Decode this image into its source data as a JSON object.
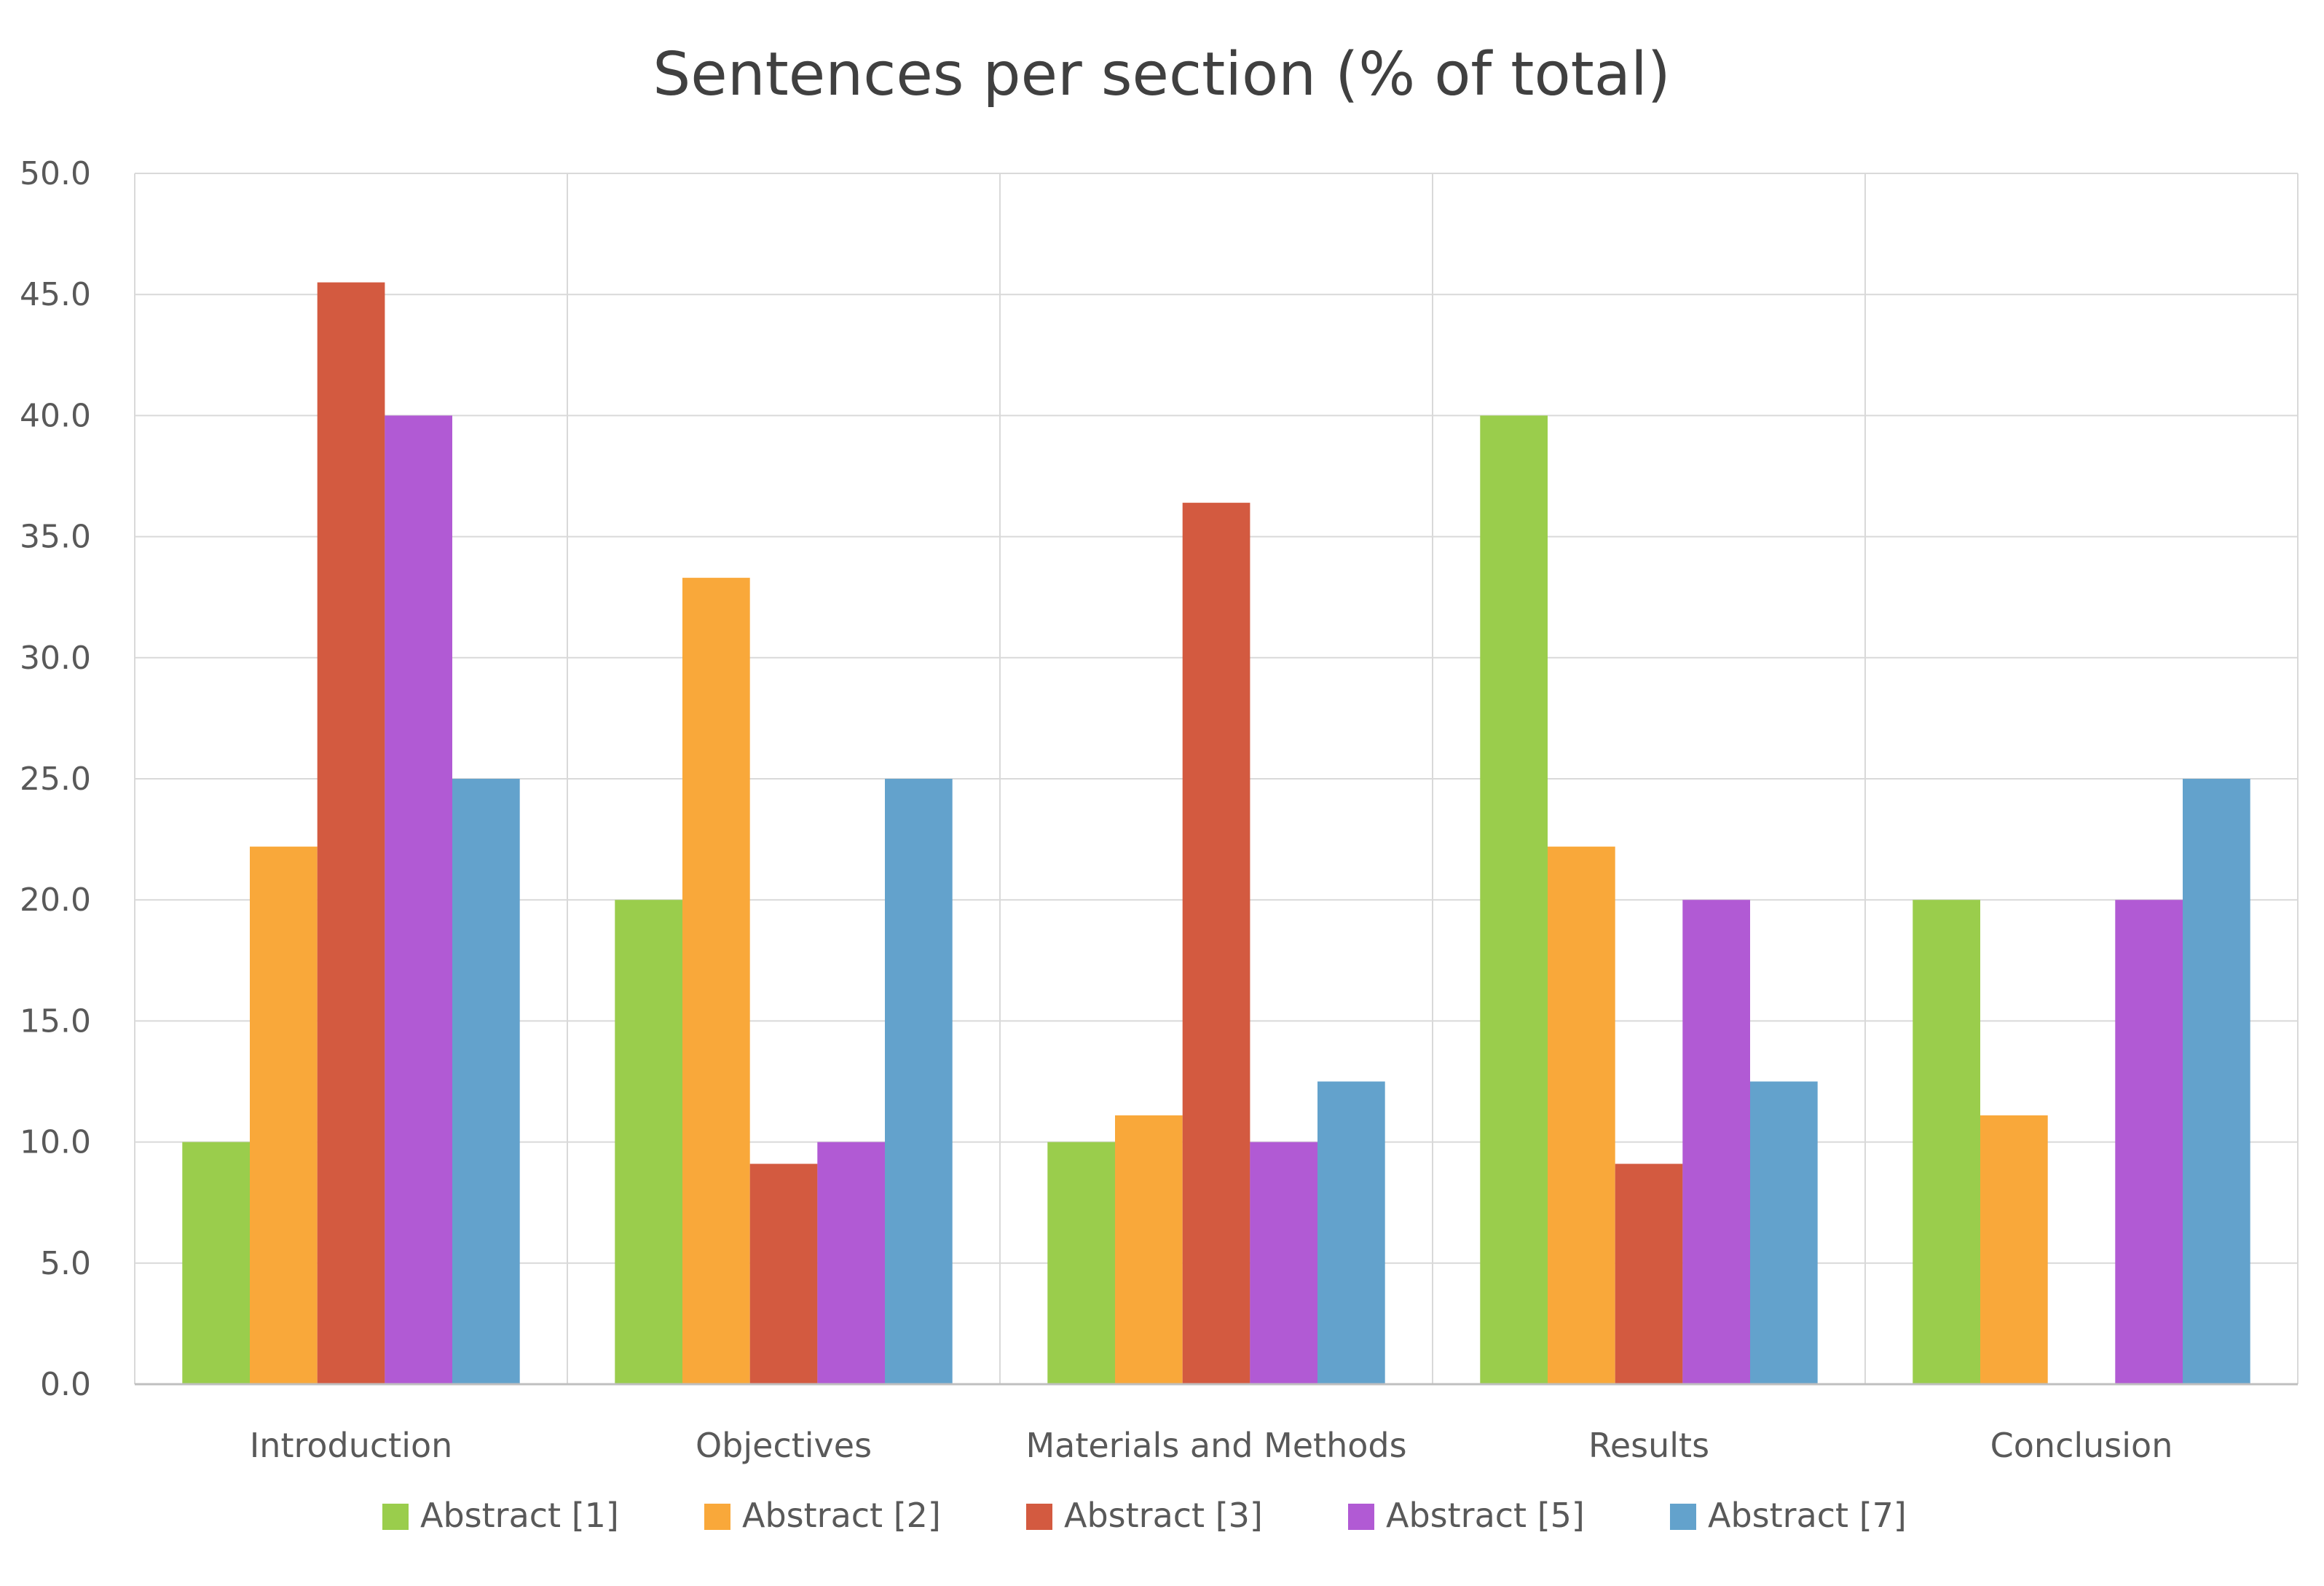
{
  "chart_data": {
    "type": "bar",
    "title": "Sentences per section (% of total)",
    "xlabel": "",
    "ylabel": "",
    "ylim": [
      0,
      50
    ],
    "ytick_step": 5,
    "ytick_labels": [
      "0.0",
      "5.0",
      "10.0",
      "15.0",
      "20.0",
      "25.0",
      "30.0",
      "35.0",
      "40.0",
      "45.0",
      "50.0"
    ],
    "grid": true,
    "legend_position": "bottom",
    "categories": [
      "Introduction",
      "Objectives",
      "Materials and Methods",
      "Results",
      "Conclusion"
    ],
    "series": [
      {
        "name": "Abstract [1]",
        "color": "#9ACD4C",
        "values": [
          10.0,
          20.0,
          10.0,
          40.0,
          20.0
        ]
      },
      {
        "name": "Abstract [2]",
        "color": "#F9A83A",
        "values": [
          22.2,
          33.3,
          11.1,
          22.2,
          11.1
        ]
      },
      {
        "name": "Abstract [3]",
        "color": "#D35A40",
        "values": [
          45.5,
          9.1,
          36.4,
          9.1,
          0.0
        ]
      },
      {
        "name": "Abstract [5]",
        "color": "#B15AD4",
        "values": [
          40.0,
          10.0,
          10.0,
          20.0,
          20.0
        ]
      },
      {
        "name": "Abstract [7]",
        "color": "#63A2CC",
        "values": [
          25.0,
          25.0,
          12.5,
          12.5,
          25.0
        ]
      }
    ]
  }
}
